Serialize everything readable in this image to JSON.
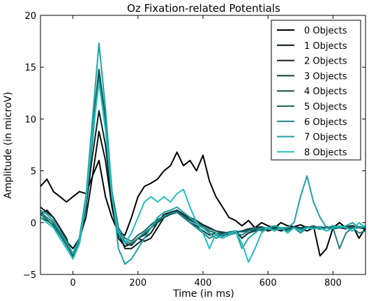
{
  "chart_data": {
    "type": "line",
    "title": "Oz Fixation-related Potentials",
    "xlabel": "Time (in ms)",
    "ylabel": "Amplitude (in microV)",
    "xlim": [
      -100,
      900
    ],
    "ylim": [
      -5,
      20
    ],
    "xticks": [
      "0",
      "200",
      "400",
      "600",
      "800"
    ],
    "yticks": [
      "−5",
      "0",
      "5",
      "10",
      "15",
      "20"
    ],
    "grid": false,
    "legend_position": "top-right",
    "series": [
      {
        "name": "0 Objects",
        "color": "#000000",
        "x": [
          -100,
          -80,
          -60,
          -40,
          -20,
          0,
          20,
          40,
          60,
          80,
          100,
          120,
          140,
          160,
          180,
          200,
          220,
          240,
          260,
          280,
          300,
          320,
          340,
          360,
          380,
          400,
          420,
          440,
          460,
          480,
          500,
          520,
          540,
          560,
          580,
          600,
          620,
          640,
          660,
          680,
          700,
          720,
          740,
          760,
          780,
          800,
          820,
          840,
          860,
          880,
          900
        ],
        "y": [
          3.5,
          4.2,
          3.0,
          2.5,
          2.0,
          2.5,
          3.0,
          2.8,
          4.5,
          6.0,
          2.5,
          0.5,
          -1.0,
          -1.2,
          0.5,
          2.5,
          3.5,
          3.8,
          4.2,
          5.0,
          5.5,
          6.8,
          5.5,
          6.0,
          5.0,
          6.5,
          4.0,
          2.5,
          1.5,
          0.5,
          0.2,
          -0.3,
          0.2,
          -0.5,
          0.0,
          -0.3,
          -0.5,
          0.0,
          -0.3,
          -0.4,
          -0.2,
          -0.5,
          -0.3,
          -3.2,
          -2.5,
          -0.5,
          0.0,
          -0.5,
          -0.3,
          -1.5,
          -0.5
        ]
      },
      {
        "name": "1 Objects",
        "color": "#050f0f",
        "x": [
          -100,
          -80,
          -60,
          -40,
          -20,
          0,
          20,
          40,
          60,
          80,
          100,
          120,
          140,
          160,
          180,
          200,
          220,
          240,
          260,
          280,
          300,
          320,
          340,
          360,
          380,
          400,
          420,
          440,
          460,
          480,
          500,
          520,
          540,
          560,
          580,
          600,
          620,
          640,
          660,
          680,
          700,
          720,
          740,
          760,
          780,
          800,
          820,
          840,
          860,
          880,
          900
        ],
        "y": [
          0.8,
          1.2,
          0.5,
          -0.5,
          -1.8,
          -2.5,
          -1.5,
          0.5,
          4.5,
          8.8,
          6.0,
          1.5,
          -1.5,
          -2.3,
          -2.0,
          -1.5,
          -1.8,
          -1.5,
          -0.5,
          0.5,
          0.8,
          1.2,
          0.8,
          0.3,
          0.0,
          -0.5,
          -1.0,
          -1.5,
          -1.2,
          -1.0,
          -0.8,
          -1.5,
          -1.0,
          -0.8,
          -0.5,
          -0.8,
          -0.6,
          -0.8,
          -0.6,
          -0.5,
          -0.6,
          -0.8,
          -0.5,
          -0.6,
          -0.5,
          -0.3,
          -0.5,
          -0.4,
          -0.3,
          -0.5,
          -0.4
        ]
      },
      {
        "name": "2 Objects",
        "color": "#0a2222",
        "x": [
          -100,
          -80,
          -60,
          -40,
          -20,
          0,
          20,
          40,
          60,
          80,
          100,
          120,
          140,
          160,
          180,
          200,
          220,
          240,
          260,
          280,
          300,
          320,
          340,
          360,
          380,
          400,
          420,
          440,
          460,
          480,
          500,
          520,
          540,
          560,
          580,
          600,
          620,
          640,
          660,
          680,
          700,
          720,
          740,
          760,
          780,
          800,
          820,
          840,
          860,
          880,
          900
        ],
        "y": [
          1.5,
          1.0,
          0.5,
          -0.5,
          -1.5,
          -3.5,
          -2.0,
          1.5,
          6.5,
          10.8,
          7.5,
          2.0,
          -1.0,
          -2.5,
          -2.5,
          -2.0,
          -1.5,
          -1.0,
          0.0,
          0.8,
          1.0,
          1.2,
          0.8,
          0.5,
          0.2,
          -0.2,
          -0.5,
          -0.8,
          -1.0,
          -1.2,
          -1.0,
          -0.8,
          -0.6,
          -0.5,
          -0.4,
          -0.6,
          -0.5,
          -0.6,
          -0.8,
          -0.5,
          -0.6,
          -0.4,
          -0.5,
          -0.6,
          -0.4,
          -0.5,
          -0.5,
          -0.6,
          -0.4,
          -0.5,
          -0.6
        ]
      },
      {
        "name": "3 Objects",
        "color": "#0f3a3a",
        "x": [
          -100,
          -80,
          -60,
          -40,
          -20,
          0,
          20,
          40,
          60,
          80,
          100,
          120,
          140,
          160,
          180,
          200,
          220,
          240,
          260,
          280,
          300,
          320,
          340,
          360,
          380,
          400,
          420,
          440,
          460,
          480,
          500,
          520,
          540,
          560,
          580,
          600,
          620,
          640,
          660,
          680,
          700,
          720,
          740,
          760,
          780,
          800,
          820,
          840,
          860,
          880,
          900
        ],
        "y": [
          1.0,
          0.5,
          0.0,
          -1.0,
          -2.0,
          -3.0,
          -1.5,
          2.0,
          8.0,
          14.2,
          9.5,
          3.0,
          -1.0,
          -2.0,
          -2.2,
          -1.5,
          -1.2,
          -0.5,
          0.0,
          0.5,
          0.8,
          1.0,
          0.5,
          0.0,
          -0.3,
          -0.8,
          -1.2,
          -1.0,
          -1.3,
          -1.0,
          -0.8,
          -1.5,
          -1.0,
          -0.8,
          -0.7,
          -0.6,
          -0.5,
          -0.5,
          -0.6,
          -0.4,
          -0.5,
          -0.5,
          -0.4,
          -0.6,
          -0.5,
          -0.5,
          -0.4,
          -0.5,
          -0.5,
          -0.4,
          -0.5
        ]
      },
      {
        "name": "4 Objects",
        "color": "#135050",
        "x": [
          -100,
          -80,
          -60,
          -40,
          -20,
          0,
          20,
          40,
          60,
          80,
          100,
          120,
          140,
          160,
          180,
          200,
          220,
          240,
          260,
          280,
          300,
          320,
          340,
          360,
          380,
          400,
          420,
          440,
          460,
          480,
          500,
          520,
          540,
          560,
          580,
          600,
          620,
          640,
          660,
          680,
          700,
          720,
          740,
          760,
          780,
          800,
          820,
          840,
          860,
          880,
          900
        ],
        "y": [
          0.5,
          0.2,
          -0.2,
          -1.0,
          -2.0,
          -3.0,
          -1.5,
          2.5,
          9.0,
          14.8,
          10.0,
          3.0,
          -1.0,
          -1.8,
          -2.0,
          -1.5,
          -1.0,
          -0.5,
          0.0,
          0.5,
          0.8,
          1.0,
          0.7,
          0.3,
          0.0,
          -0.3,
          -0.6,
          -0.8,
          -0.9,
          -1.0,
          -0.9,
          -0.8,
          -0.7,
          -0.6,
          -0.6,
          -0.5,
          -0.5,
          -0.6,
          -0.5,
          -0.5,
          -0.5,
          -0.4,
          -0.5,
          -0.5,
          -0.5,
          -0.4,
          -0.5,
          -0.5,
          -0.4,
          -0.5,
          -0.5
        ]
      },
      {
        "name": "5 Objects",
        "color": "#176868",
        "x": [
          -100,
          -80,
          -60,
          -40,
          -20,
          0,
          20,
          40,
          60,
          80,
          100,
          120,
          140,
          160,
          180,
          200,
          220,
          240,
          260,
          280,
          300,
          320,
          340,
          360,
          380,
          400,
          420,
          440,
          460,
          480,
          500,
          520,
          540,
          560,
          580,
          600,
          620,
          640,
          660,
          680,
          700,
          720,
          740,
          760,
          780,
          800,
          820,
          840,
          860,
          880,
          900
        ],
        "y": [
          0.8,
          0.3,
          -0.3,
          -1.2,
          -2.2,
          -3.2,
          -1.8,
          2.0,
          8.5,
          14.0,
          9.5,
          3.0,
          -0.5,
          -1.5,
          -1.8,
          -1.2,
          -0.8,
          -0.2,
          0.3,
          0.6,
          0.9,
          1.1,
          0.6,
          0.2,
          -0.1,
          -0.5,
          -0.8,
          -1.0,
          -1.1,
          -0.9,
          -0.8,
          -0.9,
          -0.8,
          -0.7,
          -0.6,
          -0.5,
          -0.6,
          -0.5,
          -0.5,
          -0.5,
          -0.6,
          -0.5,
          -0.5,
          -0.4,
          -0.5,
          -0.6,
          -0.5,
          -0.4,
          -0.5,
          -0.5,
          -0.4
        ]
      },
      {
        "name": "6 Objects",
        "color": "#1b8282",
        "x": [
          -100,
          -80,
          -60,
          -40,
          -20,
          0,
          20,
          40,
          60,
          80,
          100,
          120,
          140,
          160,
          180,
          200,
          220,
          240,
          260,
          280,
          300,
          320,
          340,
          360,
          380,
          400,
          420,
          440,
          460,
          480,
          500,
          520,
          540,
          560,
          580,
          600,
          620,
          640,
          660,
          680,
          700,
          720,
          740,
          760,
          780,
          800,
          820,
          840,
          860,
          880,
          900
        ],
        "y": [
          1.0,
          0.5,
          0.0,
          -1.0,
          -2.0,
          -3.0,
          -1.5,
          2.5,
          9.0,
          13.8,
          9.0,
          2.5,
          -0.8,
          -1.8,
          -2.0,
          -1.5,
          -1.0,
          -0.5,
          0.2,
          0.6,
          0.9,
          1.0,
          0.5,
          0.0,
          -0.5,
          -1.0,
          -1.5,
          -1.2,
          -1.5,
          -1.2,
          -1.0,
          -1.2,
          -0.8,
          -0.5,
          -0.8,
          -0.5,
          -0.3,
          -0.5,
          -0.8,
          -0.5,
          -1.0,
          -0.5,
          -0.3,
          -0.5,
          -0.8,
          -0.5,
          -2.5,
          -1.0,
          -0.5,
          -1.0,
          -0.8
        ]
      },
      {
        "name": "7 Objects",
        "color": "#1ca3a3",
        "x": [
          -100,
          -80,
          -60,
          -40,
          -20,
          0,
          20,
          40,
          60,
          80,
          100,
          120,
          140,
          160,
          180,
          200,
          220,
          240,
          260,
          280,
          300,
          320,
          340,
          360,
          380,
          400,
          420,
          440,
          460,
          480,
          500,
          520,
          540,
          560,
          580,
          600,
          620,
          640,
          660,
          680,
          700,
          720,
          740,
          760,
          780,
          800,
          820,
          840,
          860,
          880,
          900
        ],
        "y": [
          1.2,
          0.8,
          0.2,
          -0.8,
          -1.8,
          -3.0,
          -1.5,
          2.5,
          10.0,
          17.3,
          11.0,
          3.0,
          -2.5,
          -4.0,
          -3.5,
          -2.5,
          -1.5,
          -0.5,
          0.5,
          1.0,
          1.2,
          1.5,
          1.0,
          0.5,
          0.0,
          -0.5,
          -1.0,
          -1.5,
          -1.2,
          -1.0,
          -0.8,
          -2.5,
          -1.5,
          -1.0,
          -0.5,
          -0.5,
          -0.3,
          -0.5,
          -0.5,
          0.0,
          2.5,
          4.5,
          2.0,
          0.5,
          -0.5,
          -0.3,
          -0.5,
          -0.3,
          0.0,
          -0.5,
          -0.3
        ]
      },
      {
        "name": "8 Objects",
        "color": "#1fc0c0",
        "x": [
          -100,
          -80,
          -60,
          -40,
          -20,
          0,
          20,
          40,
          60,
          80,
          100,
          120,
          140,
          160,
          180,
          200,
          220,
          240,
          260,
          280,
          300,
          320,
          340,
          360,
          380,
          400,
          420,
          440,
          460,
          480,
          500,
          520,
          540,
          560,
          580,
          600,
          620,
          640,
          660,
          680,
          700,
          720,
          740,
          760,
          780,
          800,
          820,
          840,
          860,
          880,
          900
        ],
        "y": [
          0.5,
          0.0,
          -0.5,
          -1.5,
          -2.5,
          -3.5,
          -2.0,
          2.0,
          8.5,
          13.5,
          9.0,
          2.5,
          -1.0,
          -2.0,
          -1.0,
          0.5,
          2.0,
          2.5,
          2.0,
          2.5,
          2.0,
          2.8,
          3.2,
          1.5,
          0.0,
          -1.0,
          -2.5,
          -1.0,
          -1.5,
          -1.2,
          -0.8,
          -2.0,
          -3.8,
          -2.5,
          -1.0,
          -0.5,
          -0.8,
          -0.5,
          -1.0,
          -0.5,
          -0.8,
          -0.5,
          -0.6,
          -0.5,
          -0.8,
          -0.5,
          -0.3,
          -0.5,
          -0.8,
          0.0,
          -0.5
        ]
      }
    ]
  }
}
